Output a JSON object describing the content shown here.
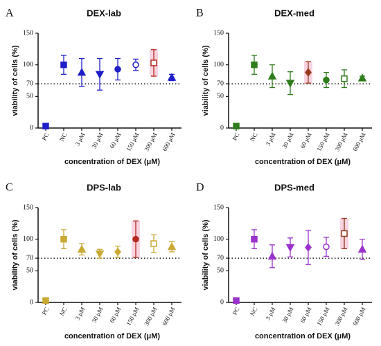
{
  "chart_data": [
    {
      "type": "dot",
      "panel_label": "A",
      "title": "DEX-lab",
      "ylabel": "viability of cells (%)",
      "xlabel": "concentration of DEX (μM)",
      "categories": [
        "PC",
        "NC",
        "3 μM",
        "30 μM",
        "60 μM",
        "150 μM",
        "300 μM",
        "600 μM"
      ],
      "values": [
        3,
        100,
        88,
        85,
        93,
        100,
        103,
        80
      ],
      "errors": [
        1,
        15,
        22,
        25,
        17,
        9,
        21,
        5
      ],
      "colors": [
        "#1f1fc8",
        "#1f1fc8",
        "#1f1fc8",
        "#1f1fc8",
        "#1f1fc8",
        "#1f1fc8",
        "#b52a1e",
        "#1f1fc8"
      ],
      "markers": [
        "square",
        "square",
        "triangle",
        "triangle-down",
        "circle",
        "circle-open",
        "square-open",
        "triangle"
      ],
      "shaded": [
        false,
        false,
        false,
        false,
        false,
        false,
        true,
        false
      ],
      "ylim": [
        0,
        150
      ],
      "yticks": [
        0,
        50,
        70,
        100,
        150
      ],
      "reference_line": 70
    },
    {
      "type": "dot",
      "panel_label": "B",
      "title": "DEX-med",
      "ylabel": "viability of cells (%)",
      "xlabel": "concentration of DEX (μM)",
      "categories": [
        "PC",
        "NC",
        "3 μM",
        "30 μM",
        "60 μM",
        "150 μM",
        "300 μM",
        "600 μM"
      ],
      "values": [
        3,
        100,
        82,
        71,
        88,
        76,
        78,
        79
      ],
      "errors": [
        1,
        15,
        18,
        18,
        17,
        12,
        14,
        3
      ],
      "colors": [
        "#2e7d1c",
        "#2e7d1c",
        "#2e7d1c",
        "#2e7d1c",
        "#9a3a1a",
        "#2e7d1c",
        "#2e7d1c",
        "#2e7d1c"
      ],
      "markers": [
        "square",
        "square",
        "triangle",
        "triangle-down",
        "diamond",
        "circle",
        "square-open",
        "triangle"
      ],
      "shaded": [
        false,
        false,
        false,
        false,
        true,
        false,
        false,
        false
      ],
      "ylim": [
        0,
        150
      ],
      "yticks": [
        0,
        50,
        70,
        100,
        150
      ],
      "reference_line": 70
    },
    {
      "type": "dot",
      "panel_label": "C",
      "title": "DPS-lab",
      "ylabel": "viability of cells (%)",
      "xlabel": "concentration of DEX (μM)",
      "categories": [
        "PC",
        "NC",
        "3 μM",
        "30 μM",
        "60 μM",
        "150 μM",
        "300 μM",
        "600 μM"
      ],
      "values": [
        3,
        100,
        84,
        77,
        80,
        100,
        93,
        88
      ],
      "errors": [
        1,
        15,
        9,
        7,
        9,
        29,
        14,
        8
      ],
      "colors": [
        "#c9a834",
        "#c9a834",
        "#c9a834",
        "#c9a834",
        "#c9a834",
        "#b52a1e",
        "#c9a834",
        "#c9a834"
      ],
      "markers": [
        "square",
        "square",
        "triangle",
        "triangle-down",
        "diamond",
        "circle",
        "square-open",
        "triangle"
      ],
      "shaded": [
        false,
        false,
        false,
        false,
        false,
        true,
        false,
        false
      ],
      "ylim": [
        0,
        150
      ],
      "yticks": [
        0,
        50,
        70,
        100,
        150
      ],
      "reference_line": 70
    },
    {
      "type": "dot",
      "panel_label": "D",
      "title": "DPS-med",
      "ylabel": "viability of cells (%)",
      "xlabel": "concentration of DEX (μM)",
      "categories": [
        "PC",
        "NC",
        "3 μM",
        "30 μM",
        "60 μM",
        "150 μM",
        "300 μM",
        "600 μM"
      ],
      "values": [
        3,
        100,
        73,
        87,
        87,
        88,
        109,
        84
      ],
      "errors": [
        1,
        15,
        18,
        15,
        27,
        15,
        24,
        16
      ],
      "colors": [
        "#9b32cc",
        "#9b32cc",
        "#9b32cc",
        "#9b32cc",
        "#9b32cc",
        "#9b32cc",
        "#8a3a1a",
        "#9b32cc"
      ],
      "markers": [
        "square",
        "square",
        "triangle",
        "triangle-down",
        "diamond",
        "circle-open",
        "square-open",
        "triangle"
      ],
      "shaded": [
        false,
        false,
        false,
        false,
        false,
        false,
        true,
        false
      ],
      "ylim": [
        0,
        150
      ],
      "yticks": [
        0,
        50,
        70,
        100,
        150
      ],
      "reference_line": 70
    }
  ]
}
